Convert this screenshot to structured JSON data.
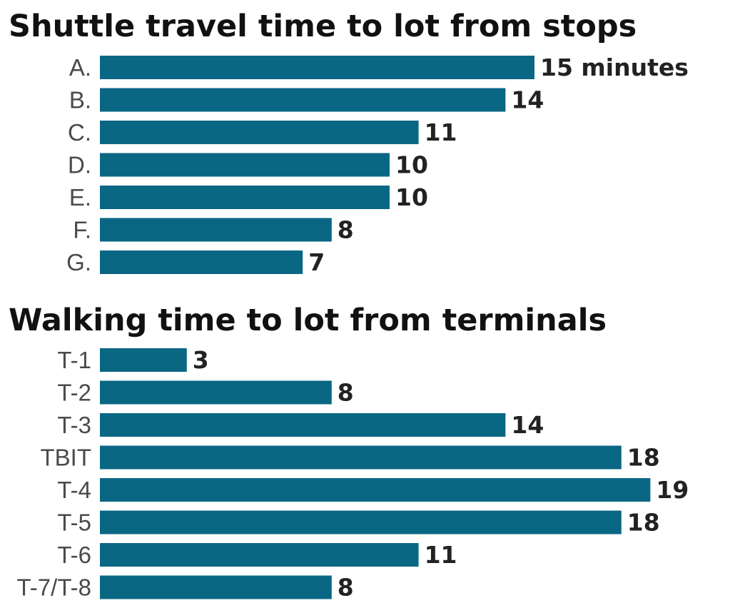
{
  "chart_data": [
    {
      "type": "bar",
      "orientation": "horizontal",
      "title": "Shuttle travel time to lot from stops",
      "categories": [
        "A.",
        "B.",
        "C.",
        "D.",
        "E.",
        "F.",
        "G."
      ],
      "values": [
        15,
        14,
        11,
        10,
        10,
        8,
        7
      ],
      "value_labels": [
        "15 minutes",
        "14",
        "11",
        "10",
        "10",
        "8",
        "7"
      ],
      "bar_color": "#0a6784",
      "xlim": [
        0,
        19
      ],
      "grid": false,
      "legend": "none"
    },
    {
      "type": "bar",
      "orientation": "horizontal",
      "title": "Walking time to lot from terminals",
      "categories": [
        "T-1",
        "T-2",
        "T-3",
        "TBIT",
        "T-4",
        "T-5",
        "T-6",
        "T-7/T-8"
      ],
      "values": [
        3,
        8,
        14,
        18,
        19,
        18,
        11,
        8
      ],
      "value_labels": [
        "3",
        "8",
        "14",
        "18",
        "19",
        "18",
        "11",
        "8"
      ],
      "bar_color": "#0a6784",
      "xlim": [
        0,
        19
      ],
      "grid": false,
      "legend": "none"
    }
  ]
}
